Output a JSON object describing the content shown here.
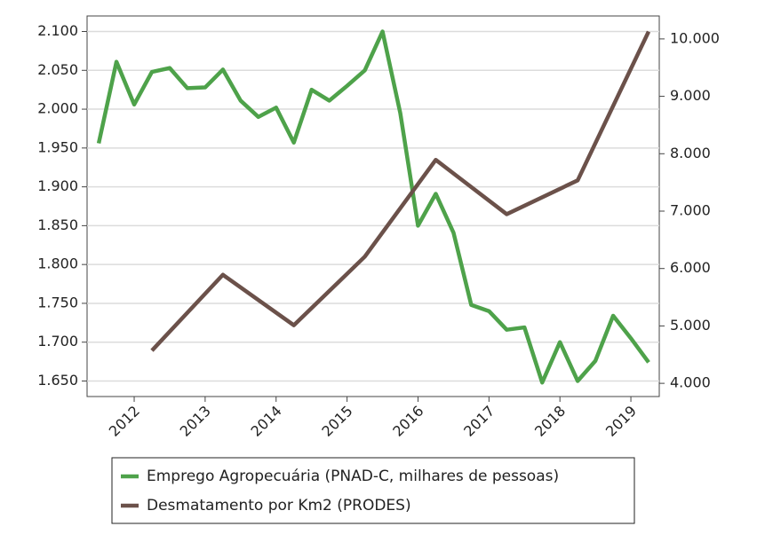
{
  "chart_data": {
    "type": "line",
    "xlim": [
      2011.336,
      2019.4
    ],
    "xticks": [
      2012,
      2013,
      2014,
      2015,
      2016,
      2017,
      2018,
      2019
    ],
    "ylim": [
      1630,
      2120
    ],
    "yticks": [
      {
        "value": 1650,
        "label": "1.650"
      },
      {
        "value": 1700,
        "label": "1.700"
      },
      {
        "value": 1750,
        "label": "1.750"
      },
      {
        "value": 1800,
        "label": "1.800"
      },
      {
        "value": 1850,
        "label": "1.850"
      },
      {
        "value": 1900,
        "label": "1.900"
      },
      {
        "value": 1950,
        "label": "1.950"
      },
      {
        "value": 2000,
        "label": "2.000"
      },
      {
        "value": 2050,
        "label": "2.050"
      },
      {
        "value": 2100,
        "label": "2.100"
      }
    ],
    "y2lim": [
      3770,
      10400
    ],
    "y2ticks": [
      {
        "value": 4000,
        "label": "4.000"
      },
      {
        "value": 5000,
        "label": "5.000"
      },
      {
        "value": 6000,
        "label": "6.000"
      },
      {
        "value": 7000,
        "label": "7.000"
      },
      {
        "value": 8000,
        "label": "8.000"
      },
      {
        "value": 9000,
        "label": "9.000"
      },
      {
        "value": 10000,
        "label": "10.000"
      }
    ],
    "grid": true,
    "series": [
      {
        "name": "Emprego Agropecuária (PNAD-C, milhares de pessoas)",
        "color": "#4ea24a",
        "x": [
          2011.5,
          2011.75,
          2012,
          2012.25,
          2012.5,
          2012.75,
          2013,
          2013.25,
          2013.5,
          2013.75,
          2014,
          2014.25,
          2014.5,
          2014.75,
          2015,
          2015.25,
          2015.5,
          2015.75,
          2016,
          2016.25,
          2016.5,
          2016.75,
          2017,
          2017.25,
          2017.5,
          2017.75,
          2018,
          2018.25,
          2018.5,
          2018.75,
          2019,
          2019.25
        ],
        "values": [
          1956,
          2061,
          2006,
          2048,
          2053,
          2027,
          2028,
          2051,
          2011,
          1990,
          2002,
          1957,
          2025,
          2011,
          2030,
          2050,
          2100,
          1995,
          1850,
          1891,
          1841,
          1748,
          1740,
          1716,
          1719,
          1648,
          1700,
          1650,
          1676,
          1734,
          1705,
          1674
        ]
      },
      {
        "name": "Desmatamento por Km2 (PRODES)",
        "color": "#6b514a",
        "axis": "y2",
        "x": [
          2012.25,
          2013.25,
          2014.25,
          2015.25,
          2016.25,
          2017.25,
          2018.25,
          2019.25
        ],
        "values": [
          4571,
          5891,
          5012,
          6207,
          7893,
          6947,
          7536,
          10129
        ]
      }
    ]
  }
}
